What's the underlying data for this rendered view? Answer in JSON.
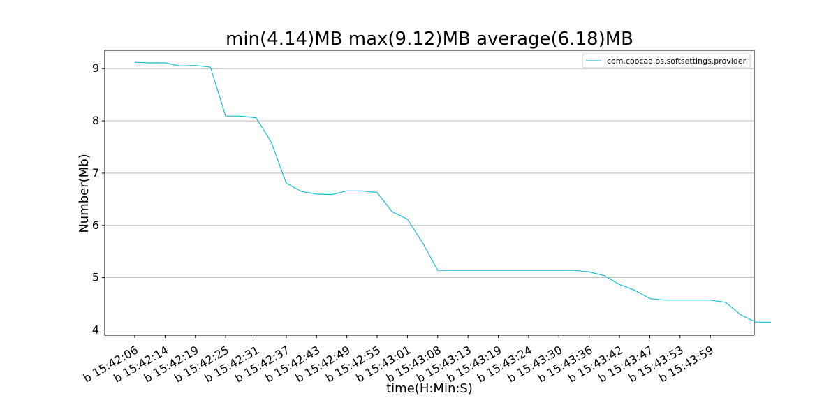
{
  "chart_data": {
    "type": "line",
    "title": "min(4.14)MB max(9.12)MB average(6.18)MB",
    "xlabel": "time(H:Min:S)",
    "ylabel": "Number(Mb)",
    "ylim": [
      3.9,
      9.35
    ],
    "yticks": [
      4,
      5,
      6,
      7,
      8,
      9
    ],
    "grid": "horizontal",
    "legend_position": "top-right",
    "x_tick_labels": [
      "b 15:42:06",
      "b 15:42:14",
      "b 15:42:19",
      "b 15:42:25",
      "b 15:42:31",
      "b 15:42:37",
      "b 15:42:43",
      "b 15:42:49",
      "b 15:42:55",
      "b 15:43:01",
      "b 15:43:08",
      "b 15:43:13",
      "b 15:43:19",
      "b 15:43:24",
      "b 15:43:30",
      "b 15:43:36",
      "b 15:43:42",
      "b 15:43:47",
      "b 15:43:53",
      "b 15:43:59"
    ],
    "series": [
      {
        "name": "com.coocaa.os.softsettings.provider",
        "color": "#17becf",
        "values": [
          9.12,
          9.11,
          9.11,
          9.05,
          9.06,
          9.03,
          8.09,
          8.09,
          8.06,
          7.6,
          6.81,
          6.65,
          6.6,
          6.59,
          6.66,
          6.66,
          6.63,
          6.26,
          6.12,
          5.67,
          5.14,
          5.14,
          5.14,
          5.14,
          5.14,
          5.14,
          5.14,
          5.14,
          5.14,
          5.14,
          5.11,
          5.04,
          4.87,
          4.76,
          4.6,
          4.57,
          4.57,
          4.57,
          4.57,
          4.53,
          4.29,
          4.15,
          4.15
        ]
      }
    ]
  }
}
